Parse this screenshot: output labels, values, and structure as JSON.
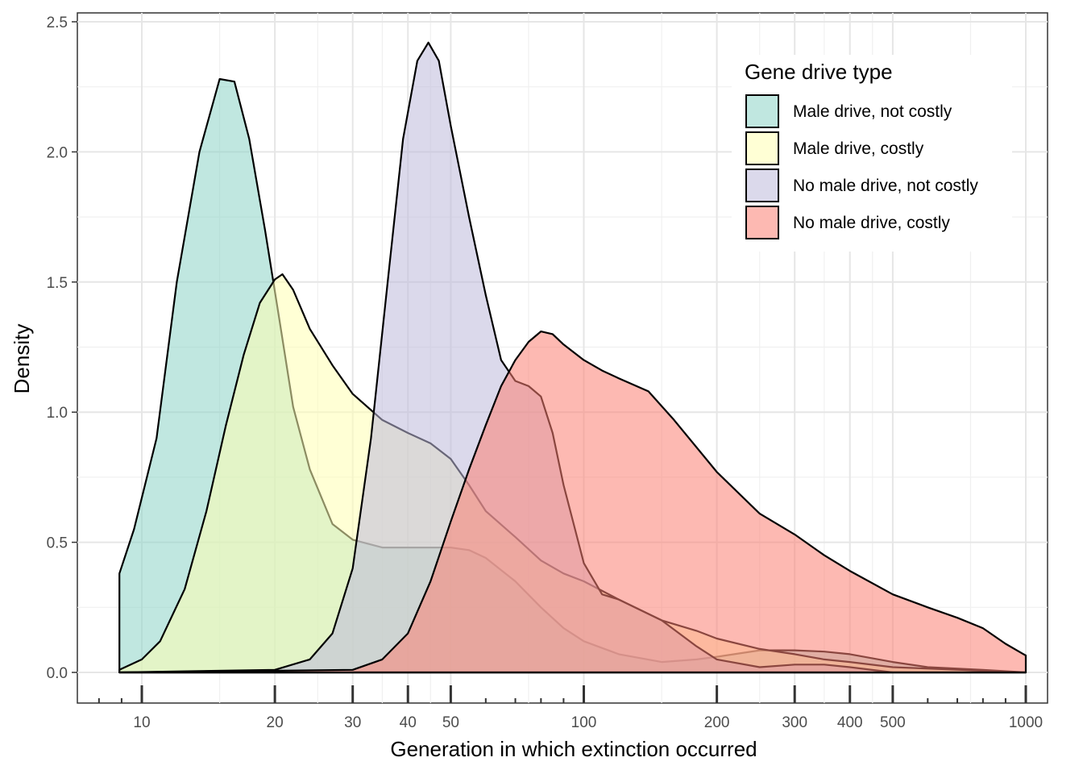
{
  "chart_data": {
    "type": "area",
    "xlabel": "Generation in which extinction occurred",
    "ylabel": "Density",
    "x_scale": "log10",
    "xlim": [
      8.4,
      1000
    ],
    "ylim": [
      0,
      2.5
    ],
    "x_ticks": [
      10,
      20,
      30,
      40,
      50,
      100,
      200,
      300,
      400,
      500,
      1000
    ],
    "x_tick_labels": [
      "10",
      "20",
      "30",
      "40",
      "50",
      "100",
      "200",
      "300",
      "400",
      "500",
      "1000"
    ],
    "y_ticks": [
      0,
      0.5,
      1,
      1.5,
      2,
      2.5
    ],
    "y_tick_labels": [
      "0.0",
      "0.5",
      "1.0",
      "1.5",
      "2.0",
      "2.5"
    ],
    "grid": true,
    "legend": {
      "title": "Gene drive type",
      "placement": "top-right",
      "entries": [
        "Male drive, not costly",
        "Male drive, costly",
        "No male drive, not costly",
        "No male drive, costly"
      ]
    },
    "series": [
      {
        "name": "Male drive, not costly",
        "color": "#8dd3c7",
        "x": [
          8.9,
          8.9,
          9.6,
          10.8,
          12,
          13.5,
          15,
          16.2,
          17.5,
          19,
          20.5,
          22,
          24,
          27,
          30,
          35,
          40,
          45,
          50,
          55,
          60,
          70,
          80,
          90,
          100,
          120,
          150,
          180,
          200,
          250,
          300,
          350,
          400,
          500,
          600,
          800,
          1000
        ],
        "y": [
          0,
          0.38,
          0.55,
          0.9,
          1.5,
          2.0,
          2.28,
          2.27,
          2.05,
          1.7,
          1.35,
          1.02,
          0.78,
          0.57,
          0.51,
          0.48,
          0.48,
          0.48,
          0.48,
          0.47,
          0.44,
          0.35,
          0.25,
          0.17,
          0.12,
          0.07,
          0.04,
          0.05,
          0.06,
          0.085,
          0.085,
          0.08,
          0.07,
          0.04,
          0.02,
          0.01,
          0.0
        ]
      },
      {
        "name": "Male drive, costly",
        "color": "#ffffb3",
        "x": [
          8.9,
          10,
          11,
          12.5,
          14,
          15.5,
          17,
          18.5,
          20,
          20.8,
          22,
          24,
          27,
          30,
          35,
          40,
          45,
          50,
          55,
          60,
          70,
          80,
          90,
          100,
          120,
          150,
          180,
          200,
          250,
          300,
          350,
          400,
          500,
          1000
        ],
        "y": [
          0.01,
          0.05,
          0.12,
          0.32,
          0.62,
          0.95,
          1.22,
          1.42,
          1.51,
          1.53,
          1.47,
          1.32,
          1.18,
          1.07,
          0.97,
          0.92,
          0.88,
          0.82,
          0.72,
          0.62,
          0.52,
          0.43,
          0.38,
          0.35,
          0.28,
          0.2,
          0.16,
          0.13,
          0.09,
          0.07,
          0.05,
          0.04,
          0.02,
          0.0
        ]
      },
      {
        "name": "No male drive, not costly",
        "color": "#bebada",
        "x": [
          8.9,
          20,
          24,
          27,
          30,
          33,
          36,
          39,
          42,
          44.5,
          47,
          50,
          55,
          60,
          65,
          70,
          75,
          80,
          85,
          90,
          100,
          110,
          120,
          150,
          180,
          200,
          250,
          300,
          350,
          400,
          500,
          1000
        ],
        "y": [
          0,
          0.01,
          0.05,
          0.15,
          0.4,
          0.9,
          1.5,
          2.05,
          2.35,
          2.42,
          2.35,
          2.1,
          1.75,
          1.45,
          1.2,
          1.12,
          1.1,
          1.06,
          0.92,
          0.72,
          0.42,
          0.3,
          0.28,
          0.2,
          0.1,
          0.05,
          0.02,
          0.03,
          0.03,
          0.02,
          0.0,
          0.0
        ]
      },
      {
        "name": "No male drive, costly",
        "color": "#fb8072",
        "x": [
          8.9,
          30,
          35,
          40,
          45,
          50,
          55,
          60,
          65,
          70,
          75,
          80,
          85,
          90,
          100,
          110,
          120,
          140,
          160,
          200,
          250,
          300,
          350,
          400,
          500,
          600,
          700,
          800,
          900,
          1000
        ],
        "y": [
          0,
          0.01,
          0.05,
          0.15,
          0.35,
          0.58,
          0.78,
          0.95,
          1.1,
          1.2,
          1.27,
          1.31,
          1.3,
          1.26,
          1.2,
          1.16,
          1.13,
          1.08,
          0.97,
          0.77,
          0.61,
          0.53,
          0.45,
          0.39,
          0.3,
          0.25,
          0.21,
          0.17,
          0.11,
          0.065
        ]
      }
    ]
  }
}
